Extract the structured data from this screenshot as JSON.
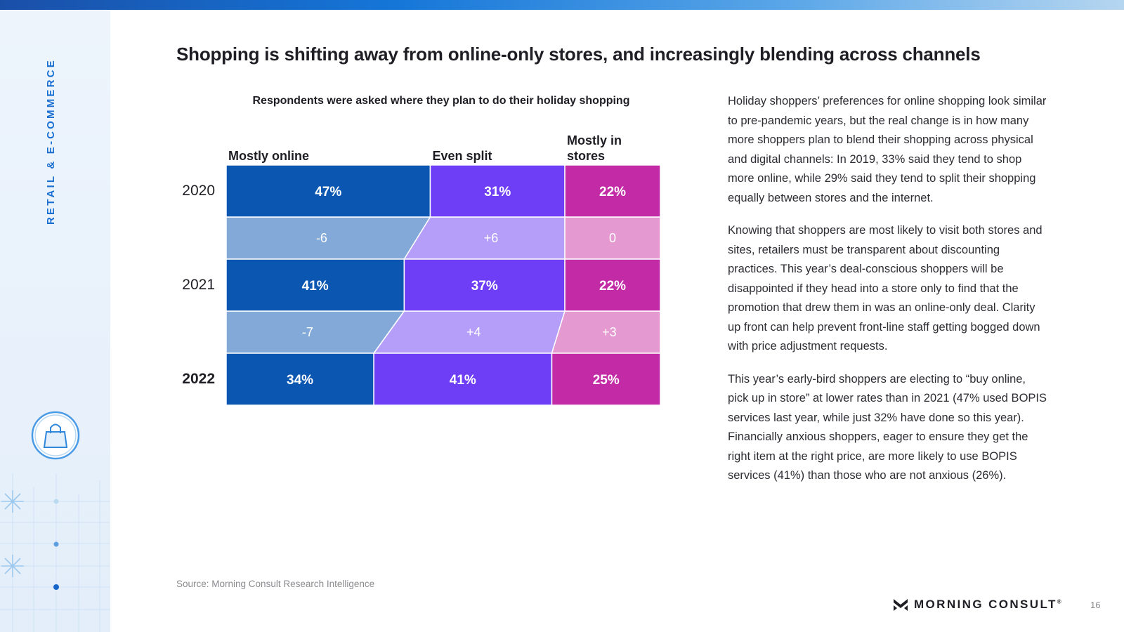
{
  "sidebar": {
    "label": "RETAIL & E-COMMERCE"
  },
  "icons": {
    "bag": "shopping-bag-icon",
    "logo": "morning-consult-logo-icon"
  },
  "title": "Shopping is shifting away from online-only stores, and increasingly blending across channels",
  "chart_data": {
    "type": "bar",
    "subtitle": "Respondents were asked where they plan to do their holiday shopping",
    "stacked": true,
    "orientation": "horizontal",
    "categories": [
      "2020",
      "2021",
      "2022"
    ],
    "highlight_category": "2022",
    "series": [
      {
        "name": "Mostly online",
        "values": [
          47,
          41,
          34
        ],
        "labels": [
          "47%",
          "41%",
          "34%"
        ],
        "changes": [
          "-6",
          "-7"
        ],
        "color": "#0a56b0",
        "light_color": "#82a9d8"
      },
      {
        "name": "Even split",
        "values": [
          31,
          37,
          41
        ],
        "labels": [
          "31%",
          "37%",
          "41%"
        ],
        "changes": [
          "+6",
          "+4"
        ],
        "color": "#6d3ef5",
        "light_color": "#b49ef9"
      },
      {
        "name": "Mostly in stores",
        "values": [
          22,
          22,
          25
        ],
        "labels": [
          "22%",
          "22%",
          "25%"
        ],
        "changes": [
          "0",
          "+3"
        ],
        "color": "#c22aa6",
        "light_color": "#e49ad1"
      }
    ],
    "xlim": [
      0,
      100
    ]
  },
  "paragraphs": [
    "Holiday shoppers’ preferences for online shopping look similar to pre-pandemic years, but the real change is in how many more shoppers plan to blend their shopping across physical and digital channels: In 2019, 33% said they tend to shop more online, while 29% said they tend to split their shopping equally between stores and the internet.",
    "Knowing that shoppers are most likely to visit both stores and sites, retailers must be transparent about discounting practices. This year’s deal-conscious shoppers will be disappointed if they head into a store only to find that the promotion that drew them in was an online-only deal. Clarity up front can help prevent front-line staff getting bogged down with price adjustment requests.",
    "This year’s early-bird shoppers are electing to “buy online, pick up in store” at lower rates than in 2021 (47% used BOPIS services last year, while just 32% have done so this year). Financially anxious shoppers, eager to ensure they get the right item at the right price, are more likely to use BOPIS services (41%) than those who are not anxious (26%)."
  ],
  "source": "Source: Morning Consult Research Intelligence",
  "brand": {
    "name": "MORNING CONSULT",
    "mark": "®"
  },
  "page_number": "16"
}
